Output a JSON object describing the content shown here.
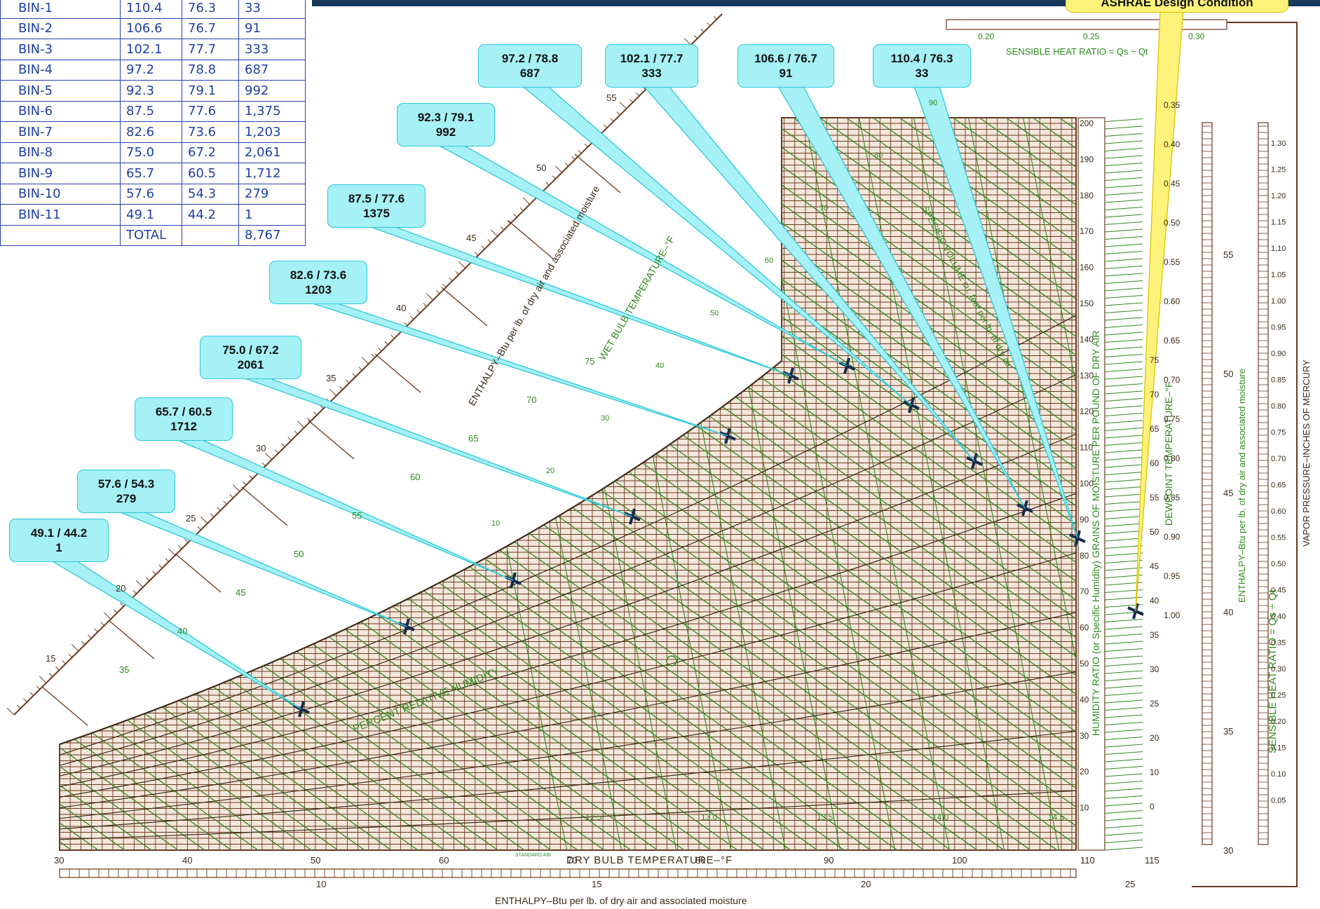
{
  "bin_table": {
    "rows": [
      [
        "BIN-1",
        "110.4",
        "76.3",
        "33"
      ],
      [
        "BIN-2",
        "106.6",
        "76.7",
        "91"
      ],
      [
        "BIN-3",
        "102.1",
        "77.7",
        "333"
      ],
      [
        "BIN-4",
        "97.2",
        "78.8",
        "687"
      ],
      [
        "BIN-5",
        "92.3",
        "79.1",
        "992"
      ],
      [
        "BIN-6",
        "87.5",
        "77.6",
        "1,375"
      ],
      [
        "BIN-7",
        "82.6",
        "73.6",
        "1,203"
      ],
      [
        "BIN-8",
        "75.0",
        "67.2",
        "2,061"
      ],
      [
        "BIN-9",
        "65.7",
        "60.5",
        "1,712"
      ],
      [
        "BIN-10",
        "57.6",
        "54.3",
        "279"
      ],
      [
        "BIN-11",
        "49.1",
        "44.2",
        "1"
      ],
      [
        "",
        "TOTAL",
        "",
        "8,767"
      ]
    ]
  },
  "callouts": [
    {
      "line1": "97.2 / 78.8",
      "line2": "687"
    },
    {
      "line1": "102.1 / 77.7",
      "line2": "333"
    },
    {
      "line1": "106.6 / 76.7",
      "line2": "91"
    },
    {
      "line1": "110.4 / 76.3",
      "line2": "33"
    },
    {
      "line1": "92.3 / 79.1",
      "line2": "992"
    },
    {
      "line1": "87.5 / 77.6",
      "line2": "1375"
    },
    {
      "line1": "82.6 / 73.6",
      "line2": "1203"
    },
    {
      "line1": "75.0 / 67.2",
      "line2": "2061"
    },
    {
      "line1": "65.7 / 60.5",
      "line2": "1712"
    },
    {
      "line1": "57.6 / 54.3",
      "line2": "279"
    },
    {
      "line1": "49.1 / 44.2",
      "line2": "1"
    }
  ],
  "design_condition_label": "ASHRAE Design Condition",
  "chart_text": {
    "x_axis_title": "DRY BULB TEMPERATURE–°F",
    "x_ticks": [
      "30",
      "40",
      "50",
      "60",
      "70",
      "80",
      "90",
      "100",
      "110",
      "115"
    ],
    "standard_air": "STANDARD AIR",
    "bottom_enthalpy_title": "ENTHALPY–Btu per lb. of dry air and associated moisture",
    "bottom_enthalpy_ticks": [
      "10",
      "15",
      "20",
      "25"
    ],
    "diagonal_enthalpy_title": "ENTHALPY–Btu per lb. of dry air and associated moisture",
    "diagonal_enthalpy_ticks": [
      "15",
      "20",
      "25",
      "30",
      "35",
      "40",
      "45",
      "50",
      "55"
    ],
    "wet_bulb_title": "WET BULB TEMPERATURE–°F",
    "wet_bulb_ticks": [
      "35",
      "40",
      "45",
      "50",
      "55",
      "60",
      "65",
      "70",
      "75"
    ],
    "rh_title": "PERCENT RELATIVE HUMIDITY",
    "rh_ticks": [
      "90",
      "80",
      "70",
      "60",
      "50",
      "40",
      "30",
      "20",
      "10"
    ],
    "sensible_heat_ratio_top": "SENSIBLE HEAT RATIO = Qs ÷ Qt",
    "shr_top_ticks": [
      "0.20",
      "0.25",
      "0.30"
    ],
    "specific_volume_title": "SPECIFIC VOLUME cu. feet per lb. of dry air",
    "specific_volume_ticks": [
      "12.5",
      "13.0",
      "13.5",
      "14.0",
      "14.5"
    ],
    "humidity_ratio_title": "HUMIDITY RATIO (or Specific Humidity) GRAINS OF MOISTURE PER POUND OF DRY AIR",
    "humidity_ratio_ticks": [
      "200",
      "190",
      "180",
      "170",
      "160",
      "150",
      "140",
      "130",
      "120",
      "110",
      "100",
      "90",
      "80",
      "70",
      "60",
      "50",
      "40",
      "30",
      "20",
      "10"
    ],
    "dewpoint_title": "DEWPOINT TEMPERATURE–°F",
    "dewpoint_ticks": [
      "75",
      "70",
      "65",
      "60",
      "55",
      "50",
      "45",
      "40",
      "35",
      "30",
      "25",
      "20",
      "10",
      "0"
    ],
    "right_enthalpy_title": "ENTHALPY–Btu per lb. of dry air and associated moisture",
    "right_enthalpy_ticks": [
      "55",
      "50",
      "45",
      "40",
      "35",
      "30"
    ],
    "shr_right_title": "SENSIBLE HEAT RATIO = Qs ÷ Qt",
    "shr_right_ticks": [
      "0.35",
      "0.40",
      "0.45",
      "0.50",
      "0.55",
      "0.60",
      "0.65",
      "0.70",
      "0.75",
      "0.80",
      "0.85",
      "0.90",
      "0.95",
      "1.00"
    ],
    "vapor_pressure_title": "VAPOR PRESSURE–INCHES OF MERCURY",
    "vapor_pressure_ticks": [
      "1.30",
      "1.25",
      "1.20",
      "1.15",
      "1.10",
      "1.05",
      "1.00",
      "0.95",
      "0.90",
      "0.85",
      "0.80",
      "0.75",
      "0.70",
      "0.65",
      "0.60",
      "0.55",
      "0.50",
      "0.45",
      "0.40",
      "0.35",
      "0.30",
      "0.25",
      "0.20",
      "0.15",
      "0.10",
      "0.05"
    ]
  },
  "colors": {
    "chart_fill": "#f3e6db",
    "grid_brown": "#6b3a1e",
    "grid_green": "#2f8a1e",
    "callout_fill": "#a5f1f6",
    "callout_border": "#2ec7d6",
    "design_fill": "#fff27a",
    "table_text": "#1f3fa6",
    "top_bar": "#173a5c"
  }
}
